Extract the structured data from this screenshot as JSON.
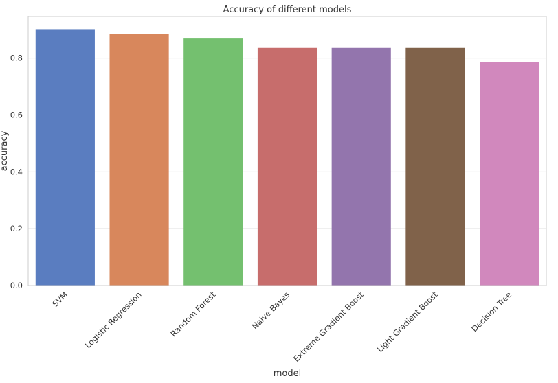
{
  "chart_data": {
    "type": "bar",
    "title": "Accuracy of different models",
    "xlabel": "model",
    "ylabel": "accuracy",
    "categories": [
      "SVM",
      "Logistic Regression",
      "Random Forest",
      "Naive Bayes",
      "Extreme Gradient Boost",
      "Light Gradient Boost",
      "Decision Tree"
    ],
    "values": [
      0.902,
      0.885,
      0.869,
      0.836,
      0.836,
      0.836,
      0.787
    ],
    "colors": [
      "#5a7dc0",
      "#d8875c",
      "#74c06f",
      "#c76d6c",
      "#9375ad",
      "#80624a",
      "#d188bd"
    ],
    "ylim": [
      0,
      0.9465
    ],
    "yticks": [
      0.0,
      0.2,
      0.4,
      0.6,
      0.8
    ],
    "ytick_labels": [
      "0.0",
      "0.2",
      "0.4",
      "0.6",
      "0.8"
    ],
    "grid": "horizontal"
  }
}
